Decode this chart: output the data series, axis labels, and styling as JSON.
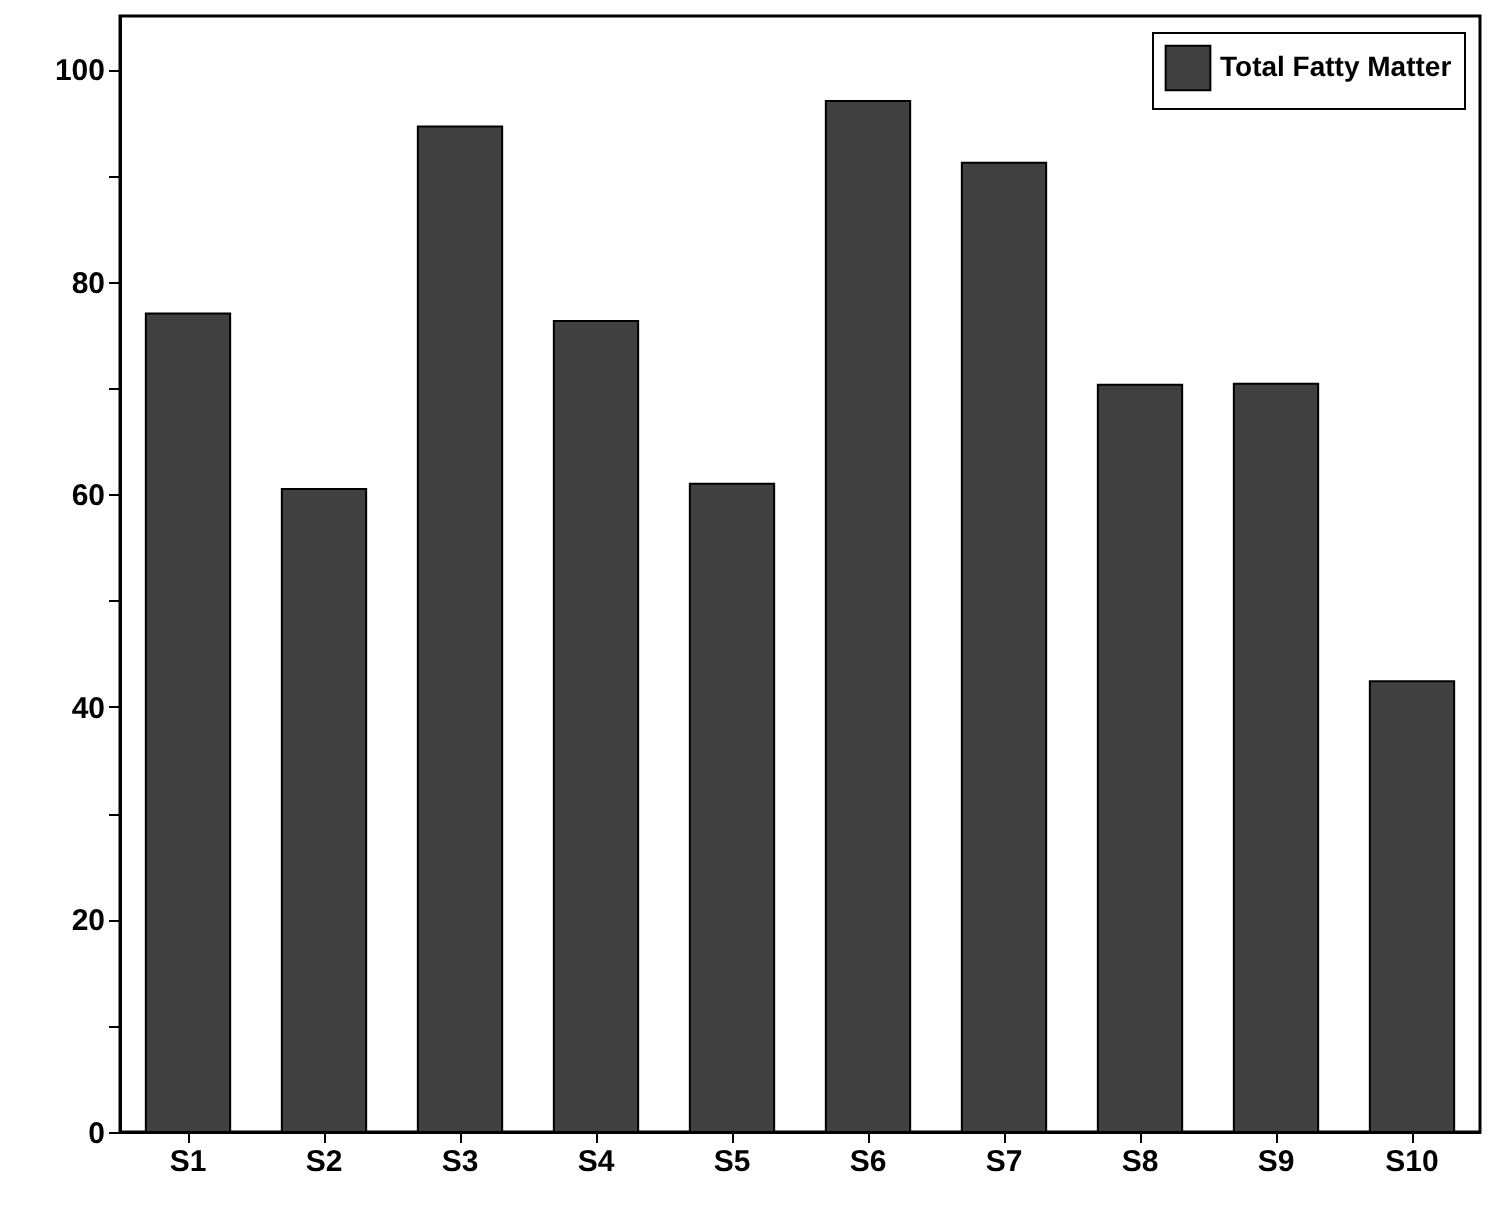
{
  "chart_data": {
    "type": "bar",
    "categories": [
      "S1",
      "S2",
      "S3",
      "S4",
      "S5",
      "S6",
      "S7",
      "S8",
      "S9",
      "S10"
    ],
    "series": [
      {
        "name": "Total Fatty Matter",
        "color": "#404040",
        "values": [
          77.0,
          60.5,
          94.6,
          76.3,
          61.0,
          97.0,
          91.2,
          70.3,
          70.4,
          42.4
        ]
      }
    ],
    "ylim": [
      0,
      105
    ],
    "yticks": [
      0,
      {
        "value": 10,
        "label": null
      },
      20,
      {
        "value": 30,
        "label": null
      },
      40,
      {
        "value": 50,
        "label": null
      },
      60,
      {
        "value": 70,
        "label": null
      },
      80,
      {
        "value": 90,
        "label": null
      },
      100
    ],
    "grid": false,
    "legend": "top right"
  }
}
